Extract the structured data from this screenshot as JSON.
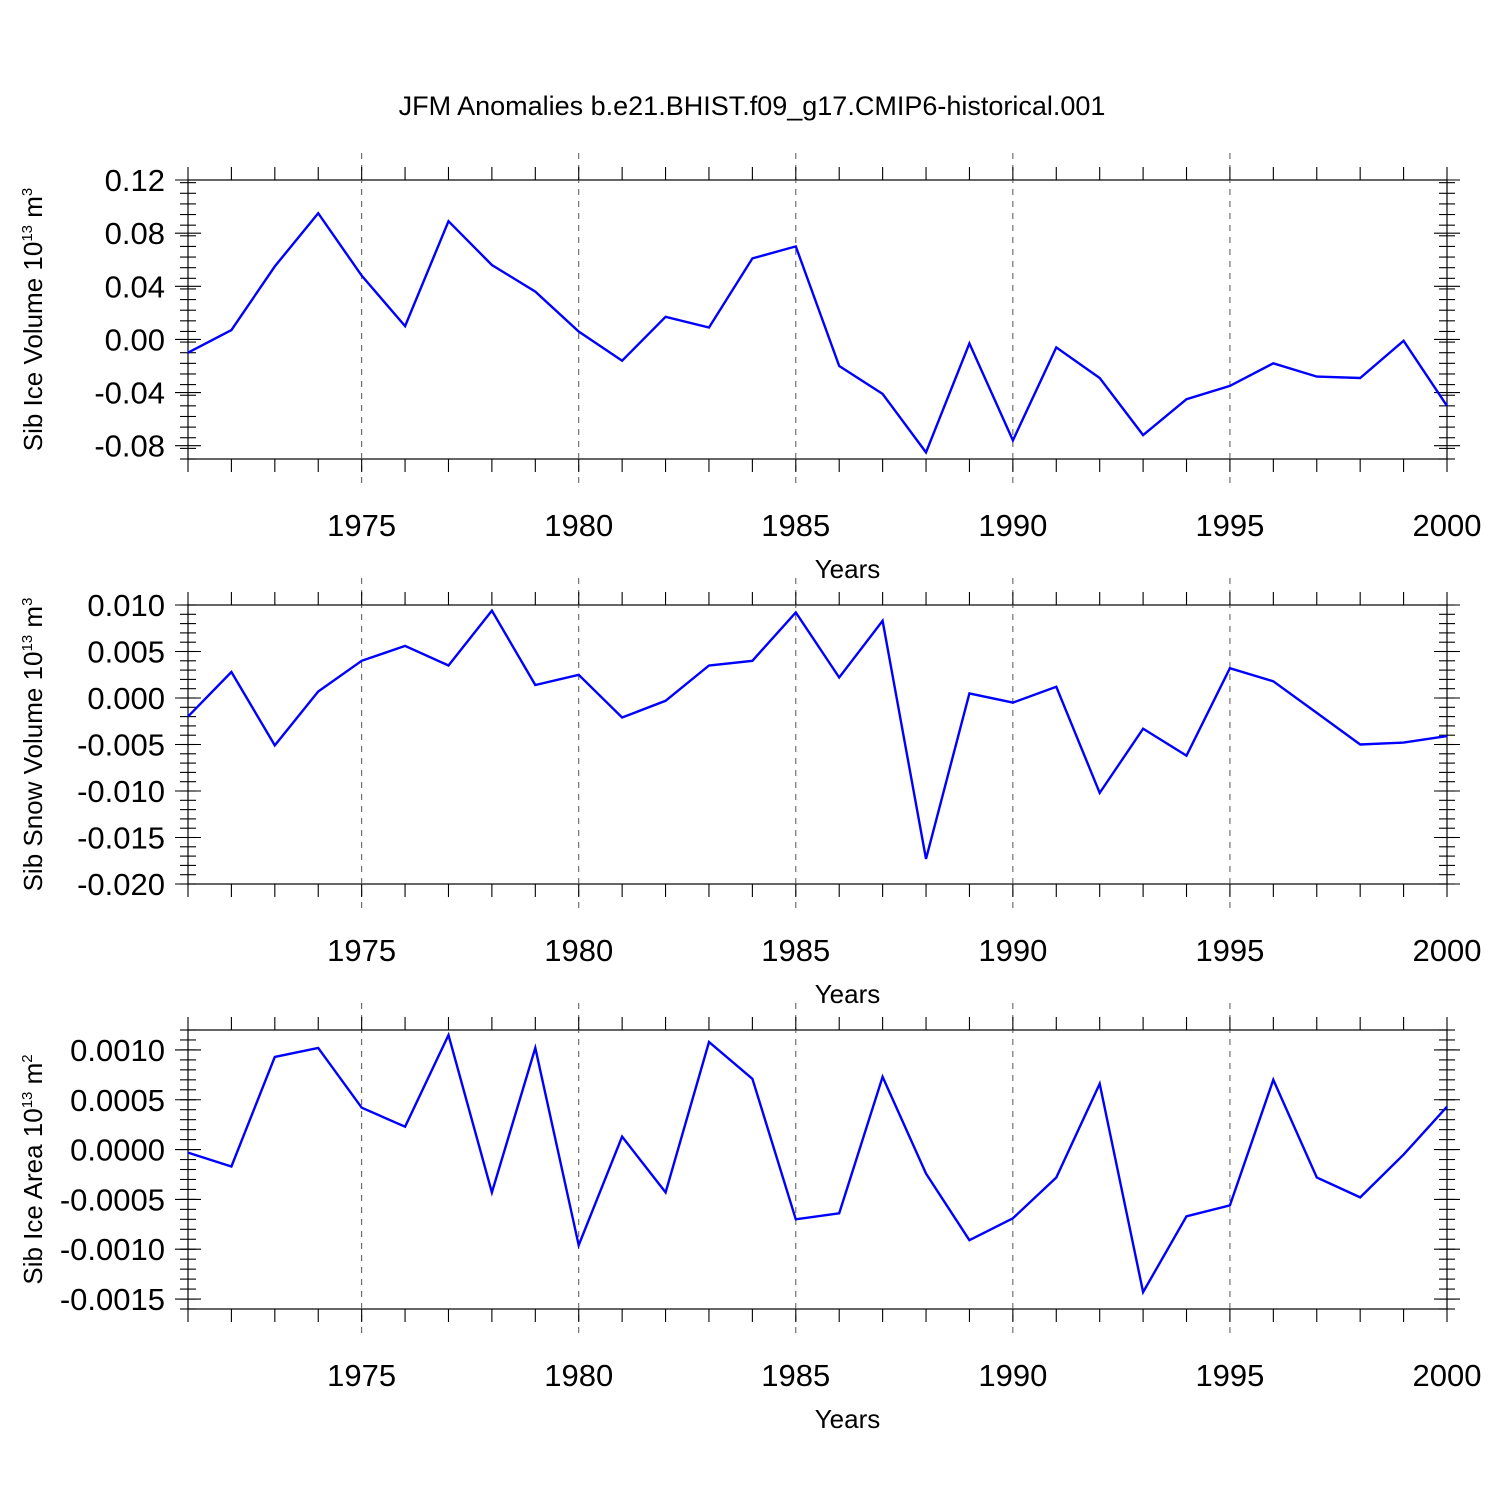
{
  "title": "JFM Anomalies b.e21.BHIST.f09_g17.CMIP6-historical.001",
  "colors": {
    "series": "#0000ff",
    "frame": "#000000",
    "grid": "#555555"
  },
  "chart_data": [
    {
      "type": "line",
      "xlabel": "Years",
      "ylabel": {
        "main": "Sib Ice Volume 10",
        "sup": "13",
        "unit": " m",
        "unit_sup": "3"
      },
      "xlim": [
        1971,
        2000
      ],
      "ylim": [
        -0.09,
        0.12
      ],
      "xticks": [
        1975,
        1980,
        1985,
        1990,
        1995,
        2000
      ],
      "xtick_labels": [
        "1975",
        "1980",
        "1985",
        "1990",
        "1995",
        "2000"
      ],
      "yticks": [
        -0.08,
        -0.04,
        0.0,
        0.04,
        0.08,
        0.12
      ],
      "ytick_labels": [
        "-0.08",
        "-0.04",
        "0.00",
        "0.04",
        "0.08",
        "0.12"
      ],
      "grid": "vertical dashed at major x ticks",
      "x": [
        1971,
        1972,
        1973,
        1974,
        1975,
        1976,
        1977,
        1978,
        1979,
        1980,
        1981,
        1982,
        1983,
        1984,
        1985,
        1986,
        1987,
        1988,
        1989,
        1990,
        1991,
        1992,
        1993,
        1994,
        1995,
        1996,
        1997,
        1998,
        1999,
        2000
      ],
      "values": [
        -0.01,
        0.007,
        0.055,
        0.095,
        0.048,
        0.01,
        0.089,
        0.056,
        0.036,
        0.006,
        -0.016,
        0.017,
        0.009,
        0.061,
        0.07,
        -0.02,
        -0.041,
        -0.085,
        -0.003,
        -0.076,
        -0.006,
        -0.029,
        -0.072,
        -0.045,
        -0.035,
        -0.018,
        -0.028,
        -0.029,
        -0.001,
        -0.05
      ]
    },
    {
      "type": "line",
      "xlabel": "Years",
      "ylabel": {
        "main": "Sib Snow Volume 10",
        "sup": "13",
        "unit": " m",
        "unit_sup": "3"
      },
      "xlim": [
        1971,
        2000
      ],
      "ylim": [
        -0.02,
        0.01
      ],
      "xticks": [
        1975,
        1980,
        1985,
        1990,
        1995,
        2000
      ],
      "xtick_labels": [
        "1975",
        "1980",
        "1985",
        "1990",
        "1995",
        "2000"
      ],
      "yticks": [
        -0.02,
        -0.015,
        -0.01,
        -0.005,
        0.0,
        0.005,
        0.01
      ],
      "ytick_labels": [
        "-0.020",
        "-0.015",
        "-0.010",
        "-0.005",
        "0.000",
        "0.005",
        "0.010"
      ],
      "grid": "vertical dashed at major x ticks",
      "x": [
        1971,
        1972,
        1973,
        1974,
        1975,
        1976,
        1977,
        1978,
        1979,
        1980,
        1981,
        1982,
        1983,
        1984,
        1985,
        1986,
        1987,
        1988,
        1989,
        1990,
        1991,
        1992,
        1993,
        1994,
        1995,
        1996,
        1997,
        1998,
        1999,
        2000
      ],
      "values": [
        -0.002,
        0.0028,
        -0.0051,
        0.0007,
        0.004,
        0.0056,
        0.0035,
        0.0094,
        0.0014,
        0.0025,
        -0.0021,
        -0.0003,
        0.0035,
        0.004,
        0.0092,
        0.0022,
        0.0083,
        -0.0173,
        0.0005,
        -0.0005,
        0.0012,
        -0.0102,
        -0.0033,
        -0.0062,
        0.0032,
        0.0018,
        -0.0016,
        -0.005,
        -0.0048,
        -0.0041
      ]
    },
    {
      "type": "line",
      "xlabel": "Years",
      "ylabel": {
        "main": "Sib Ice Area 10",
        "sup": "13",
        "unit": " m",
        "unit_sup": "2"
      },
      "xlim": [
        1971,
        2000
      ],
      "ylim": [
        -0.0016,
        0.0012
      ],
      "xticks": [
        1975,
        1980,
        1985,
        1990,
        1995,
        2000
      ],
      "xtick_labels": [
        "1975",
        "1980",
        "1985",
        "1990",
        "1995",
        "2000"
      ],
      "yticks": [
        -0.0015,
        -0.001,
        -0.0005,
        0.0,
        0.0005,
        0.001
      ],
      "ytick_labels": [
        "-0.0015",
        "-0.0010",
        "-0.0005",
        "0.0000",
        "0.0005",
        "0.0010"
      ],
      "grid": "vertical dashed at major x ticks",
      "x": [
        1971,
        1972,
        1973,
        1974,
        1975,
        1976,
        1977,
        1978,
        1979,
        1980,
        1981,
        1982,
        1983,
        1984,
        1985,
        1986,
        1987,
        1988,
        1989,
        1990,
        1991,
        1992,
        1993,
        1994,
        1995,
        1996,
        1997,
        1998,
        1999,
        2000
      ],
      "values": [
        -3e-05,
        -0.00017,
        0.00093,
        0.00102,
        0.00042,
        0.00023,
        0.00115,
        -0.00043,
        0.00102,
        -0.00096,
        0.00013,
        -0.00043,
        0.00108,
        0.00071,
        -0.0007,
        -0.00064,
        0.00073,
        -0.00024,
        -0.00091,
        -0.00069,
        -0.00028,
        0.00066,
        -0.00143,
        -0.00067,
        -0.00056,
        0.0007,
        -0.00028,
        -0.00048,
        -5e-05,
        0.00043
      ]
    }
  ]
}
